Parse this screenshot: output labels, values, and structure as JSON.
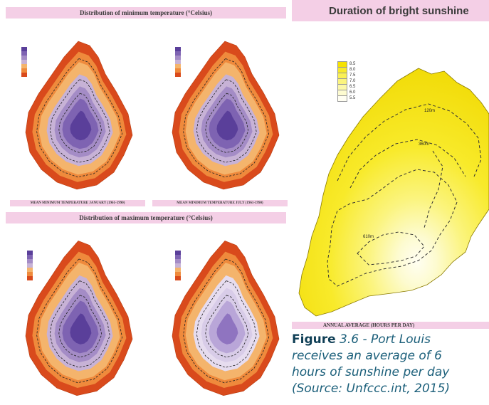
{
  "headings": {
    "min_temp": "Distribution of minimum temperature (°Celsius)",
    "max_temp": "Distribution of maximum temperature (°Celsius)",
    "sunshine": "Duration of bright sunshine"
  },
  "panel_captions": {
    "min_january": "MEAN MINIMUM TEMPERATURE JANUARY (1961-1990)",
    "min_july": "MEAN MINIMUM TEMPERATURE JULY (1961-1990)",
    "sunshine_footer": "ANNUAL AVERAGE (HOURS PER DAY)"
  },
  "sunshine_legend": [
    "8.5",
    "8.0",
    "7.5",
    "7.0",
    "6.5",
    "6.0",
    "5.5"
  ],
  "sunshine_contours": [
    "120m",
    "360m",
    "610m"
  ],
  "colors": {
    "band": "#f4cfe6",
    "temp_ramp": [
      "#d94a1c",
      "#ef8a3c",
      "#f4b46c",
      "#c7b2d6",
      "#a48cc6",
      "#7e63b2",
      "#5a3f9a"
    ],
    "sun_ramp": [
      "#f6e200",
      "#f8ea2a",
      "#faf054",
      "#fbf47e",
      "#fcf8a8",
      "#fdfbd0",
      "#fffef2"
    ],
    "caption_text": "#1b5f7a"
  },
  "caption": {
    "figure_word": "Figure",
    "number": "3.6 - Port Louis",
    "line2": "receives an average of 6",
    "line3": "hours of sunshine per day",
    "line4": "(Source: Unfccc.int, 2015)"
  }
}
